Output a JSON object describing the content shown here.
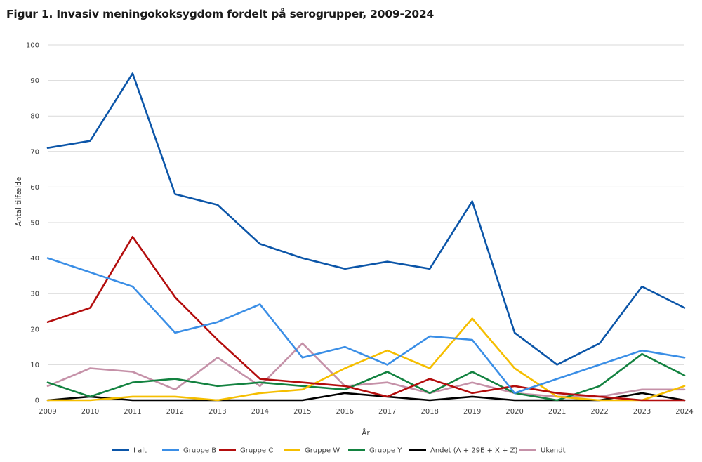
{
  "title": "Figur 1. Invasiv meningokoksygdom fordelt på serogrupper, 2009-2024",
  "chart_data": {
    "type": "line",
    "title": "Figur 1. Invasiv meningokoksygdom fordelt på serogrupper, 2009-2024",
    "xlabel": "År",
    "ylabel": "Antal tilfælde",
    "ylim": [
      0,
      100
    ],
    "yticks": [
      "0",
      "10",
      "20",
      "30",
      "40",
      "50",
      "60",
      "70",
      "80",
      "90",
      "100"
    ],
    "grid": true,
    "legend_position": "bottom",
    "x": [
      "2009",
      "2010",
      "2011",
      "2012",
      "2013",
      "2014",
      "2015",
      "2016",
      "2017",
      "2018",
      "2019",
      "2020",
      "2021",
      "2022",
      "2023",
      "2024"
    ],
    "series": [
      {
        "name": "Ukendt",
        "color": "#c591a8",
        "values": [
          4,
          9,
          8,
          3,
          12,
          4,
          16,
          4,
          5,
          2,
          5,
          2,
          1,
          1,
          3,
          3
        ]
      },
      {
        "name": "Andet (A + 29E + X + Z)",
        "color": "#000000",
        "values": [
          0,
          1,
          0,
          0,
          0,
          0,
          0,
          2,
          1,
          0,
          1,
          0,
          0,
          0,
          2,
          0
        ]
      },
      {
        "name": "Gruppe Y",
        "color": "#138240",
        "values": [
          5,
          1,
          5,
          6,
          4,
          5,
          4,
          3,
          8,
          2,
          8,
          2,
          0,
          4,
          13,
          7
        ]
      },
      {
        "name": "Gruppe W",
        "color": "#f5be00",
        "values": [
          0,
          0,
          1,
          1,
          0,
          2,
          3,
          9,
          14,
          9,
          23,
          9,
          1,
          0,
          0,
          4
        ]
      },
      {
        "name": "Gruppe C",
        "color": "#b30d0d",
        "values": [
          22,
          26,
          46,
          29,
          17,
          6,
          5,
          4,
          1,
          6,
          2,
          4,
          2,
          1,
          0,
          0
        ]
      },
      {
        "name": "Gruppe B",
        "color": "#3a8ee6",
        "values": [
          40,
          36,
          32,
          19,
          22,
          27,
          12,
          15,
          10,
          18,
          17,
          2,
          6,
          10,
          14,
          12
        ]
      },
      {
        "name": "I alt",
        "color": "#0b55a8",
        "values": [
          71,
          73,
          92,
          58,
          55,
          44,
          40,
          37,
          39,
          37,
          56,
          19,
          10,
          16,
          32,
          26
        ]
      }
    ],
    "legend_order": [
      "I alt",
      "Gruppe B",
      "Gruppe C",
      "Gruppe W",
      "Gruppe Y",
      "Andet (A + 29E + X + Z)",
      "Ukendt"
    ]
  }
}
